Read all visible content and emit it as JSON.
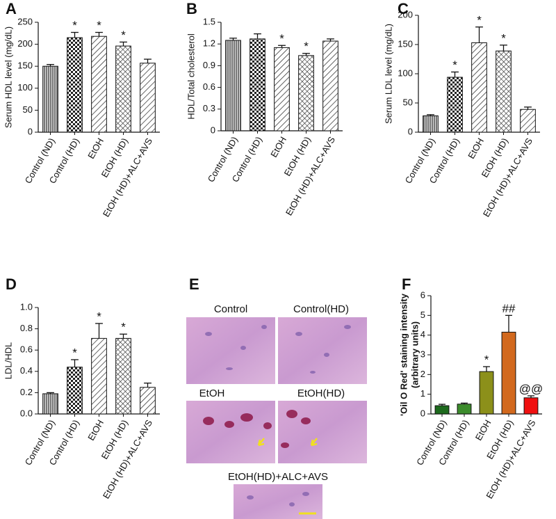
{
  "chart_data": [
    {
      "type": "bar",
      "panel_label": "A",
      "ylabel": "Serum HDL level (mg/dL)",
      "categories": [
        "Control (ND)",
        "Control (HD)",
        "EtOH",
        "EtOH (HD)",
        "EtOH (HD)+ALC+AVS"
      ],
      "values": [
        150,
        215,
        218,
        196,
        157
      ],
      "errors": [
        4,
        12,
        9,
        9,
        9
      ],
      "annotations": [
        null,
        "*",
        "*",
        "*",
        null
      ],
      "patterns": [
        "vertical",
        "checker",
        "diagonal",
        "cross",
        "diagonal"
      ],
      "ylim": [
        0,
        250
      ],
      "yticks": [
        0,
        50,
        100,
        150,
        200,
        250
      ]
    },
    {
      "type": "bar",
      "panel_label": "B",
      "ylabel": "HDL/Total cholesterol",
      "categories": [
        "Control (ND)",
        "Control (HD)",
        "EtOH",
        "EtOH (HD)",
        "EtOH (HD)+ALC+AVS"
      ],
      "values": [
        1.25,
        1.27,
        1.15,
        1.04,
        1.24
      ],
      "errors": [
        0.03,
        0.07,
        0.03,
        0.03,
        0.03
      ],
      "annotations": [
        null,
        null,
        "*",
        "*",
        null
      ],
      "patterns": [
        "vertical",
        "checker",
        "diagonal",
        "cross",
        "diagonal"
      ],
      "ylim": [
        0,
        1.5
      ],
      "yticks": [
        0,
        0.3,
        0.6,
        0.9,
        1.2,
        1.5
      ]
    },
    {
      "type": "bar",
      "panel_label": "C",
      "ylabel": "Serum LDL level (mg/dL)",
      "categories": [
        "Control (ND)",
        "Control (HD)",
        "EtOH",
        "EtOH (HD)",
        "EtOH (HD)+ALC+AVS"
      ],
      "values": [
        28,
        94,
        153,
        139,
        39
      ],
      "errors": [
        2,
        9,
        27,
        10,
        4
      ],
      "annotations": [
        null,
        "*",
        "*",
        "*",
        null
      ],
      "patterns": [
        "vertical",
        "checker",
        "diagonal",
        "cross",
        "diagonal"
      ],
      "ylim": [
        0,
        200
      ],
      "yticks": [
        0,
        50,
        100,
        150,
        200
      ]
    },
    {
      "type": "bar",
      "panel_label": "D",
      "ylabel": "LDL/HDL",
      "categories": [
        "Control (ND)",
        "Control (HD)",
        "EtOH",
        "EtOH (HD)",
        "EtOH (HD)+ALC+AVS"
      ],
      "values": [
        0.19,
        0.44,
        0.71,
        0.71,
        0.25
      ],
      "errors": [
        0.01,
        0.07,
        0.14,
        0.04,
        0.04
      ],
      "annotations": [
        null,
        "*",
        "*",
        "*",
        null
      ],
      "patterns": [
        "vertical",
        "checker",
        "diagonal",
        "cross",
        "diagonal"
      ],
      "ylim": [
        0,
        1.0
      ],
      "yticks": [
        {
          "value": 0,
          "label": "0.0"
        },
        0.2,
        0.4,
        0.6,
        0.8,
        {
          "value": 1.0,
          "label": "1.0"
        }
      ]
    },
    {
      "type": "bar",
      "panel_label": "F",
      "ylabel": [
        "'Oil O Red' staining intensity",
        "(arbitrary units)"
      ],
      "categories": [
        "Control (ND)",
        "Control (HD)",
        "EtOH",
        "EtOH (HD)",
        "EtOH (HD)+ALC+AVS"
      ],
      "values": [
        0.42,
        0.5,
        2.15,
        4.15,
        0.82
      ],
      "errors": [
        0.07,
        0.05,
        0.25,
        0.85,
        0.1
      ],
      "annotations": [
        null,
        null,
        "*",
        "##",
        "@@"
      ],
      "colors": [
        "#1d6a1d",
        "#3c8c2c",
        "#8c901a",
        "#d2691e",
        "#f01010"
      ],
      "ylim": [
        0,
        6
      ],
      "yticks": [
        0,
        1,
        2,
        3,
        4,
        5,
        6
      ]
    }
  ],
  "image_panel": {
    "panel_label": "E",
    "images": [
      "Control",
      "Control(HD)",
      "EtOH",
      "EtOH(HD)",
      "EtOH(HD)+ALC+AVS"
    ]
  }
}
